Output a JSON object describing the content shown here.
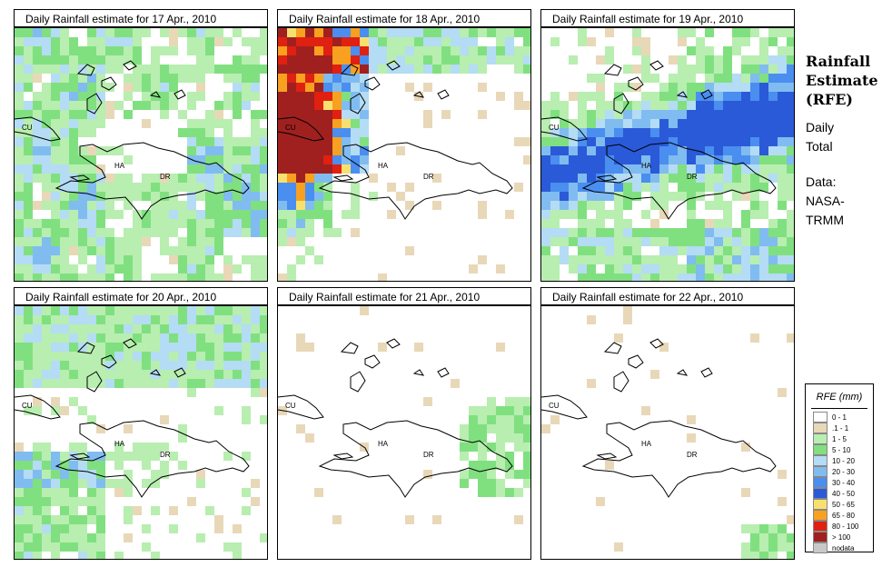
{
  "panels": [
    {
      "title": "Daily Rainfall estimate for  17 Apr., 2010",
      "day": 17
    },
    {
      "title": "Daily Rainfall estimate for  18 Apr., 2010",
      "day": 18
    },
    {
      "title": "Daily Rainfall estimate for  19 Apr., 2010",
      "day": 19
    },
    {
      "title": "Daily Rainfall estimate for  20 Apr., 2010",
      "day": 20
    },
    {
      "title": "Daily Rainfall estimate for  21 Apr., 2010",
      "day": 21
    },
    {
      "title": "Daily Rainfall estimate for  22 Apr., 2010",
      "day": 22
    }
  ],
  "map_labels": {
    "cuba": "CU",
    "haiti": "HA",
    "dominican_republic": "DR"
  },
  "sidebar": {
    "title_line1": "Rainfall",
    "title_line2": "Estimate",
    "title_line3": "(RFE)",
    "daily_line1": "Daily",
    "daily_line2": "Total",
    "data_line1": "Data:",
    "data_line2": "NASA-",
    "data_line3": "TRMM"
  },
  "legend": {
    "title": "RFE (mm)",
    "items": [
      {
        "label": "0 - 1",
        "color": "#ffffff"
      },
      {
        "label": ".1 - 1",
        "color": "#e8d8b8"
      },
      {
        "label": "1 - 5",
        "color": "#b8eeb0"
      },
      {
        "label": "5 - 10",
        "color": "#80e080"
      },
      {
        "label": "10 - 20",
        "color": "#b4dcf4"
      },
      {
        "label": "20 - 30",
        "color": "#80bcf0"
      },
      {
        "label": "30 - 40",
        "color": "#4a8ef0"
      },
      {
        "label": "40 - 50",
        "color": "#2a5ad8"
      },
      {
        "label": "50 - 65",
        "color": "#f8e070"
      },
      {
        "label": "65 - 80",
        "color": "#f8a020"
      },
      {
        "label": "80 - 100",
        "color": "#e02010"
      },
      {
        "label": "> 100",
        "color": "#a02020"
      },
      {
        "label": "nodata",
        "color": "#c8c8c8"
      }
    ]
  }
}
